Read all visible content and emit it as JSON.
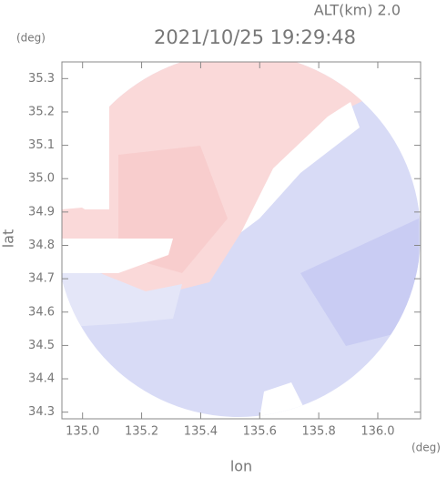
{
  "chart_data": {
    "type": "heatmap",
    "title": "2021/10/25 19:29:48",
    "subtitle": "ALT(km) 2.0",
    "xlabel": "lon",
    "ylabel": "lat",
    "xunit": "(deg)",
    "yunit": "(deg)",
    "xlim": [
      134.93,
      136.145
    ],
    "ylim": [
      34.28,
      35.35
    ],
    "xticks": [
      {
        "value": 135,
        "label": "135.0"
      },
      135.2,
      135.4,
      135.6,
      135.8,
      {
        "value": 136,
        "label": "136.0"
      }
    ],
    "yticks": [
      34.3,
      34.4,
      34.5,
      34.6,
      34.7,
      34.8,
      34.9,
      {
        "value": 35,
        "label": "35.0"
      },
      35.1,
      35.2,
      35.3
    ]
  }
}
